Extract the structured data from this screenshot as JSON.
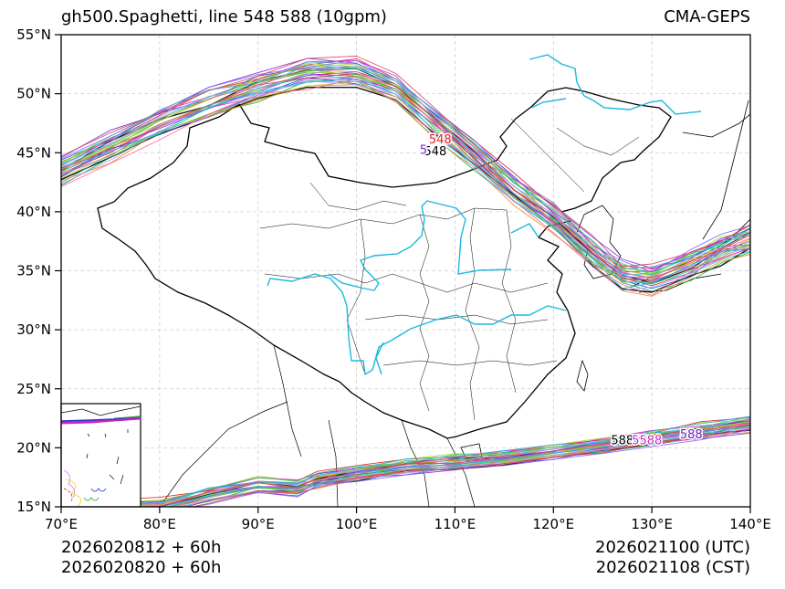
{
  "header": {
    "title": "gh500.Spaghetti, line 548 588 (10gpm)",
    "model": "CMA-GEPS"
  },
  "footer": {
    "init_times": [
      "2026020812 + 60h",
      "2026020820 + 60h"
    ],
    "valid_utc": "2026021100 (UTC)",
    "valid_cst": "2026021108 (CST)"
  },
  "chart_data": {
    "type": "map-contour-spaghetti",
    "title": "gh500.Spaghetti, line 548 588 (10gpm)",
    "subtitle_right": "CMA-GEPS",
    "variable": "500 hPa geopotential height",
    "contour_levels": [
      548,
      588
    ],
    "units": "10gpm",
    "xlabel": "",
    "ylabel": "",
    "xlim": [
      70,
      140
    ],
    "ylim": [
      15,
      55
    ],
    "x_ticks": [
      "70°E",
      "80°E",
      "90°E",
      "100°E",
      "110°E",
      "120°E",
      "130°E",
      "140°E"
    ],
    "y_ticks": [
      "15°N",
      "20°N",
      "25°N",
      "30°N",
      "35°N",
      "40°N",
      "45°N",
      "50°N",
      "55°N"
    ],
    "grid": true,
    "inset": "South China Sea",
    "contour_labels": [
      {
        "text": "548",
        "lon": 108.5,
        "lat": 45.8,
        "color": "#e0202a"
      },
      {
        "text": "548",
        "lon": 108.0,
        "lat": 44.8,
        "color": "#000000"
      },
      {
        "text": "5",
        "lon": 106.8,
        "lat": 44.9,
        "color": "#7a2ad0"
      },
      {
        "text": "588",
        "lon": 127.0,
        "lat": 20.3,
        "color": "#000000"
      },
      {
        "text": "5588",
        "lon": 129.5,
        "lat": 20.3,
        "color": "#c030c0"
      },
      {
        "text": "588",
        "lon": 134.0,
        "lat": 20.8,
        "color": "#6a1fb0"
      },
      {
        "text": "588",
        "lon": 74.5,
        "lat": 22.0,
        "color": "#000000"
      },
      {
        "text": "588",
        "lon": 72.5,
        "lat": 17.0,
        "color": "#7a2ad0"
      }
    ],
    "series": [
      {
        "name": "548 ensemble band",
        "level": 548,
        "x": [
          70,
          75,
          80,
          85,
          90,
          95,
          100,
          104,
          108,
          112,
          116,
          120,
          124,
          127,
          130,
          134,
          137,
          140
        ],
        "y": [
          43.5,
          45.5,
          47.5,
          49.2,
          50.6,
          51.7,
          51.8,
          50.5,
          47.5,
          44.8,
          42.0,
          39.5,
          36.5,
          34.6,
          34.3,
          35.5,
          36.8,
          37.7
        ]
      },
      {
        "name": "588 ensemble band",
        "level": 588,
        "x": [
          70,
          80,
          85,
          90,
          94,
          96,
          100,
          105,
          110,
          115,
          120,
          125,
          130,
          135,
          140
        ],
        "y": [
          14.8,
          15.0,
          16.0,
          16.8,
          16.6,
          17.2,
          17.8,
          18.4,
          18.8,
          19.1,
          19.6,
          20.2,
          20.8,
          21.4,
          22.0
        ]
      }
    ],
    "member_colors": [
      "#000000",
      "#e0202a",
      "#1f3fd0",
      "#20b030",
      "#7a2ad0",
      "#d020c0",
      "#20c0d0",
      "#f08a20",
      "#90e020",
      "#c8c820",
      "#ff6090",
      "#8060ff",
      "#30d080",
      "#a0a0ff",
      "#d04060",
      "#40a0e0"
    ]
  }
}
